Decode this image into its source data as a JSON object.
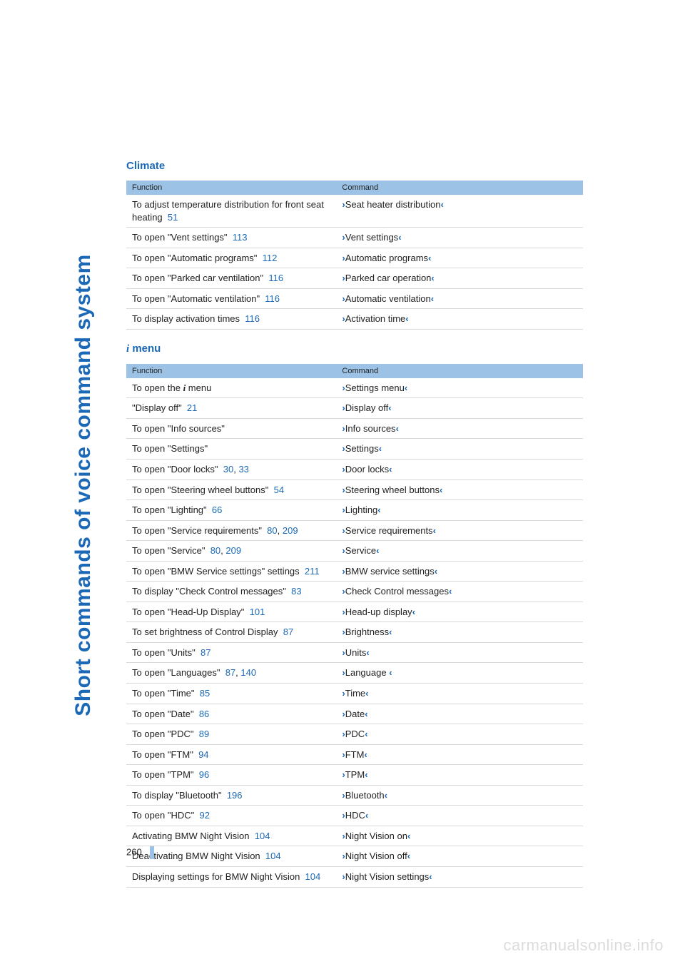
{
  "side_title": "Short commands of voice command system",
  "page_number": "260",
  "watermark": "carmanualsonline.info",
  "angle_left": "›",
  "angle_right": "‹",
  "info_glyph": "i",
  "sections": [
    {
      "title": "Climate",
      "header_func": "Function",
      "header_cmd": "Command",
      "rows": [
        {
          "func_pre": "To adjust temperature distribution for front seat heating",
          "refs": [
            "51"
          ],
          "cmd": "Seat heater distribution"
        },
        {
          "func_pre": "To open \"Vent settings\"",
          "refs": [
            "113"
          ],
          "cmd": "Vent settings"
        },
        {
          "func_pre": "To open \"Automatic programs\"",
          "refs": [
            "112"
          ],
          "cmd": "Automatic programs"
        },
        {
          "func_pre": "To open \"Parked car ventilation\"",
          "refs": [
            "116"
          ],
          "cmd": "Parked car operation"
        },
        {
          "func_pre": "To open \"Automatic ventilation\"",
          "refs": [
            "116"
          ],
          "cmd": "Automatic ventilation"
        },
        {
          "func_pre": "To display activation times",
          "refs": [
            "116"
          ],
          "cmd": "Activation time"
        }
      ]
    },
    {
      "title_has_icon": true,
      "title": "menu",
      "header_func": "Function",
      "header_cmd": "Command",
      "rows": [
        {
          "func_pre": "To open the ",
          "func_icon": true,
          "func_post": " menu",
          "refs": [],
          "cmd": "Settings menu"
        },
        {
          "func_pre": "\"Display off\"",
          "refs": [
            "21"
          ],
          "cmd": "Display off"
        },
        {
          "func_pre": "To open \"Info sources\"",
          "refs": [],
          "cmd": "Info sources"
        },
        {
          "func_pre": "To open \"Settings\"",
          "refs": [],
          "cmd": "Settings"
        },
        {
          "func_pre": "To open \"Door locks\"",
          "refs": [
            "30",
            "33"
          ],
          "cmd": "Door locks"
        },
        {
          "func_pre": "To open \"Steering wheel buttons\"",
          "refs": [
            "54"
          ],
          "cmd": "Steering wheel buttons"
        },
        {
          "func_pre": "To open \"Lighting\"",
          "refs": [
            "66"
          ],
          "cmd": "Lighting"
        },
        {
          "func_pre": "To open \"Service requirements\"",
          "refs": [
            "80",
            "209"
          ],
          "cmd": "Service requirements"
        },
        {
          "func_pre": "To open \"Service\"",
          "refs": [
            "80",
            "209"
          ],
          "cmd": "Service"
        },
        {
          "func_pre": "To open \"BMW Service settings\" settings",
          "refs": [
            "211"
          ],
          "cmd": "BMW service settings"
        },
        {
          "func_pre": "To display \"Check Control messages\"",
          "refs": [
            "83"
          ],
          "cmd": "Check Control messages"
        },
        {
          "func_pre": "To open \"Head-Up Display\"",
          "refs": [
            "101"
          ],
          "cmd": "Head-up display"
        },
        {
          "func_pre": "To set brightness of Control Display",
          "refs": [
            "87"
          ],
          "cmd": "Brightness"
        },
        {
          "func_pre": "To open \"Units\"",
          "refs": [
            "87"
          ],
          "cmd": "Units"
        },
        {
          "func_pre": "To open \"Languages\"",
          "refs": [
            "87",
            "140"
          ],
          "cmd": "Language "
        },
        {
          "func_pre": "To open \"Time\"",
          "refs": [
            "85"
          ],
          "cmd": "Time"
        },
        {
          "func_pre": "To open \"Date\"",
          "refs": [
            "86"
          ],
          "cmd": "Date"
        },
        {
          "func_pre": "To open \"PDC\"",
          "refs": [
            "89"
          ],
          "cmd": "PDC"
        },
        {
          "func_pre": "To open \"FTM\"",
          "refs": [
            "94"
          ],
          "cmd": "FTM"
        },
        {
          "func_pre": "To open \"TPM\"",
          "refs": [
            "96"
          ],
          "cmd": "TPM"
        },
        {
          "func_pre": "To display \"Bluetooth\"",
          "refs": [
            "196"
          ],
          "cmd": "Bluetooth"
        },
        {
          "func_pre": "To open \"HDC\"",
          "refs": [
            "92"
          ],
          "cmd": "HDC"
        },
        {
          "func_pre": "Activating BMW Night Vision",
          "refs": [
            "104"
          ],
          "cmd": "Night Vision on"
        },
        {
          "func_pre": "Deactivating BMW Night Vision",
          "refs": [
            "104"
          ],
          "cmd": "Night Vision off"
        },
        {
          "func_pre": "Displaying settings for BMW Night Vision",
          "refs": [
            "104"
          ],
          "cmd": "Night Vision settings"
        }
      ]
    }
  ]
}
